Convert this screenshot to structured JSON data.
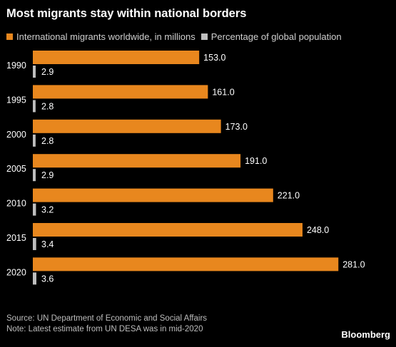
{
  "title": "Most migrants stay within national borders",
  "legend": [
    {
      "label": "International migrants worldwide, in millions",
      "color": "#e8871e"
    },
    {
      "label": "Percentage of global population",
      "color": "#bfbfbf"
    }
  ],
  "chart_data": {
    "type": "bar",
    "orientation": "horizontal",
    "categories": [
      "1990",
      "1995",
      "2000",
      "2005",
      "2010",
      "2015",
      "2020"
    ],
    "series": [
      {
        "name": "International migrants worldwide, in millions",
        "color": "#e8871e",
        "values": [
          153.0,
          161.0,
          173.0,
          191.0,
          221.0,
          248.0,
          281.0
        ],
        "labels": [
          "153.0",
          "161.0",
          "173.0",
          "191.0",
          "221.0",
          "248.0",
          "281.0"
        ]
      },
      {
        "name": "Percentage of global population",
        "color": "#bfbfbf",
        "values": [
          2.9,
          2.8,
          2.8,
          2.9,
          3.2,
          3.4,
          3.6
        ],
        "labels": [
          "2.9",
          "2.8",
          "2.8",
          "2.9",
          "3.2",
          "3.4",
          "3.6"
        ]
      }
    ],
    "grid": false
  },
  "footer": {
    "source": "Source: UN Department of Economic and Social Affairs",
    "note": "Note: Latest estimate from UN DESA was in mid-2020"
  },
  "brand": "Bloomberg"
}
